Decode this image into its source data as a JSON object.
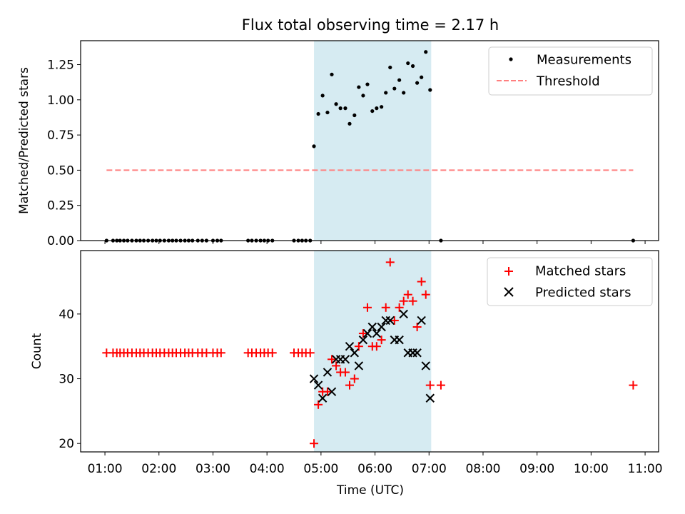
{
  "figure": {
    "title": "Flux total observing time = 2.17 h",
    "xlabel": "Time (UTC)",
    "xticks": [
      {
        "h": 1,
        "label": "01:00"
      },
      {
        "h": 2,
        "label": "02:00"
      },
      {
        "h": 3,
        "label": "03:00"
      },
      {
        "h": 4,
        "label": "04:00"
      },
      {
        "h": 5,
        "label": "05:00"
      },
      {
        "h": 6,
        "label": "06:00"
      },
      {
        "h": 7,
        "label": "07:00"
      },
      {
        "h": 8,
        "label": "08:00"
      },
      {
        "h": 9,
        "label": "09:00"
      },
      {
        "h": 10,
        "label": "10:00"
      },
      {
        "h": 11,
        "label": "11:00"
      }
    ],
    "highlight_span_hours": [
      4.87,
      7.04
    ],
    "highlight_color": "#add8e6",
    "shared_x_hours_range": [
      0.55,
      11.25
    ]
  },
  "chart_data": [
    {
      "type": "scatter",
      "ylabel": "Matched/Predicted stars",
      "ylim": [
        0,
        1.42
      ],
      "yticks": [
        {
          "v": 0.0,
          "label": "0.00"
        },
        {
          "v": 0.25,
          "label": "0.25"
        },
        {
          "v": 0.5,
          "label": "0.50"
        },
        {
          "v": 0.75,
          "label": "0.75"
        },
        {
          "v": 1.0,
          "label": "1.00"
        },
        {
          "v": 1.25,
          "label": "1.25"
        }
      ],
      "legend_position": "top-right",
      "series": [
        {
          "name": "Measurements",
          "marker": "dot",
          "color": "#000000",
          "points": [
            [
              1.03,
              0
            ],
            [
              1.15,
              0
            ],
            [
              1.22,
              0
            ],
            [
              1.28,
              0
            ],
            [
              1.35,
              0
            ],
            [
              1.42,
              0
            ],
            [
              1.5,
              0
            ],
            [
              1.58,
              0
            ],
            [
              1.65,
              0
            ],
            [
              1.72,
              0
            ],
            [
              1.8,
              0
            ],
            [
              1.88,
              0
            ],
            [
              1.95,
              0
            ],
            [
              2.02,
              0
            ],
            [
              2.1,
              0
            ],
            [
              2.18,
              0
            ],
            [
              2.25,
              0
            ],
            [
              2.32,
              0
            ],
            [
              2.4,
              0
            ],
            [
              2.48,
              0
            ],
            [
              2.55,
              0
            ],
            [
              2.62,
              0
            ],
            [
              2.72,
              0
            ],
            [
              2.8,
              0
            ],
            [
              2.88,
              0
            ],
            [
              3.0,
              0
            ],
            [
              3.08,
              0
            ],
            [
              3.15,
              0
            ],
            [
              3.65,
              0
            ],
            [
              3.72,
              0
            ],
            [
              3.8,
              0
            ],
            [
              3.88,
              0
            ],
            [
              3.95,
              0
            ],
            [
              4.02,
              0
            ],
            [
              4.1,
              0
            ],
            [
              4.5,
              0
            ],
            [
              4.58,
              0
            ],
            [
              4.65,
              0
            ],
            [
              4.72,
              0
            ],
            [
              4.8,
              0
            ],
            [
              4.87,
              0.67
            ],
            [
              4.95,
              0.9
            ],
            [
              5.03,
              1.03
            ],
            [
              5.12,
              0.91
            ],
            [
              5.2,
              1.18
            ],
            [
              5.28,
              0.97
            ],
            [
              5.36,
              0.94
            ],
            [
              5.45,
              0.94
            ],
            [
              5.53,
              0.83
            ],
            [
              5.62,
              0.89
            ],
            [
              5.7,
              1.09
            ],
            [
              5.78,
              1.03
            ],
            [
              5.86,
              1.11
            ],
            [
              5.95,
              0.92
            ],
            [
              6.03,
              0.94
            ],
            [
              6.12,
              0.95
            ],
            [
              6.2,
              1.05
            ],
            [
              6.28,
              1.23
            ],
            [
              6.36,
              1.08
            ],
            [
              6.45,
              1.14
            ],
            [
              6.53,
              1.05
            ],
            [
              6.61,
              1.26
            ],
            [
              6.7,
              1.24
            ],
            [
              6.78,
              1.12
            ],
            [
              6.86,
              1.16
            ],
            [
              6.94,
              1.34
            ],
            [
              7.02,
              1.07
            ],
            [
              7.22,
              0
            ],
            [
              10.78,
              0
            ]
          ]
        },
        {
          "name": "Threshold",
          "type": "line",
          "style": "dashed",
          "color": "#ff7f7f",
          "x": [
            1.03,
            10.78
          ],
          "y": [
            0.5,
            0.5
          ]
        }
      ]
    },
    {
      "type": "scatter",
      "ylabel": "Count",
      "ylim": [
        18.7,
        49.8
      ],
      "yticks": [
        {
          "v": 20,
          "label": "20"
        },
        {
          "v": 30,
          "label": "30"
        },
        {
          "v": 40,
          "label": "40"
        }
      ],
      "legend_position": "top-right",
      "series": [
        {
          "name": "Matched stars",
          "marker": "plus",
          "color": "#ff0000",
          "points": [
            [
              1.03,
              34
            ],
            [
              1.15,
              34
            ],
            [
              1.22,
              34
            ],
            [
              1.28,
              34
            ],
            [
              1.35,
              34
            ],
            [
              1.42,
              34
            ],
            [
              1.5,
              34
            ],
            [
              1.58,
              34
            ],
            [
              1.65,
              34
            ],
            [
              1.72,
              34
            ],
            [
              1.8,
              34
            ],
            [
              1.88,
              34
            ],
            [
              1.95,
              34
            ],
            [
              2.02,
              34
            ],
            [
              2.1,
              34
            ],
            [
              2.18,
              34
            ],
            [
              2.25,
              34
            ],
            [
              2.32,
              34
            ],
            [
              2.4,
              34
            ],
            [
              2.48,
              34
            ],
            [
              2.55,
              34
            ],
            [
              2.62,
              34
            ],
            [
              2.72,
              34
            ],
            [
              2.8,
              34
            ],
            [
              2.88,
              34
            ],
            [
              3.0,
              34
            ],
            [
              3.08,
              34
            ],
            [
              3.15,
              34
            ],
            [
              3.65,
              34
            ],
            [
              3.72,
              34
            ],
            [
              3.8,
              34
            ],
            [
              3.88,
              34
            ],
            [
              3.95,
              34
            ],
            [
              4.02,
              34
            ],
            [
              4.1,
              34
            ],
            [
              4.5,
              34
            ],
            [
              4.58,
              34
            ],
            [
              4.65,
              34
            ],
            [
              4.72,
              34
            ],
            [
              4.8,
              34
            ],
            [
              4.87,
              20
            ],
            [
              4.95,
              26
            ],
            [
              5.03,
              28
            ],
            [
              5.12,
              28
            ],
            [
              5.2,
              33
            ],
            [
              5.28,
              32
            ],
            [
              5.36,
              31
            ],
            [
              5.45,
              31
            ],
            [
              5.53,
              29
            ],
            [
              5.62,
              30
            ],
            [
              5.7,
              35
            ],
            [
              5.78,
              37
            ],
            [
              5.86,
              41
            ],
            [
              5.95,
              35
            ],
            [
              6.03,
              35
            ],
            [
              6.12,
              36
            ],
            [
              6.2,
              41
            ],
            [
              6.28,
              48
            ],
            [
              6.36,
              39
            ],
            [
              6.45,
              41
            ],
            [
              6.53,
              42
            ],
            [
              6.61,
              43
            ],
            [
              6.7,
              42
            ],
            [
              6.78,
              38
            ],
            [
              6.86,
              45
            ],
            [
              6.94,
              43
            ],
            [
              7.02,
              29
            ],
            [
              7.22,
              29
            ],
            [
              10.78,
              29
            ]
          ]
        },
        {
          "name": "Predicted stars",
          "marker": "x",
          "color": "#000000",
          "points": [
            [
              4.87,
              30
            ],
            [
              4.95,
              29
            ],
            [
              5.03,
              27
            ],
            [
              5.12,
              31
            ],
            [
              5.2,
              28
            ],
            [
              5.28,
              33
            ],
            [
              5.36,
              33
            ],
            [
              5.45,
              33
            ],
            [
              5.53,
              35
            ],
            [
              5.62,
              34
            ],
            [
              5.7,
              32
            ],
            [
              5.78,
              36
            ],
            [
              5.86,
              37
            ],
            [
              5.95,
              38
            ],
            [
              6.03,
              37
            ],
            [
              6.12,
              38
            ],
            [
              6.2,
              39
            ],
            [
              6.28,
              39
            ],
            [
              6.36,
              36
            ],
            [
              6.45,
              36
            ],
            [
              6.53,
              40
            ],
            [
              6.61,
              34
            ],
            [
              6.7,
              34
            ],
            [
              6.78,
              34
            ],
            [
              6.86,
              39
            ],
            [
              6.94,
              32
            ],
            [
              7.02,
              27
            ]
          ]
        }
      ]
    }
  ]
}
